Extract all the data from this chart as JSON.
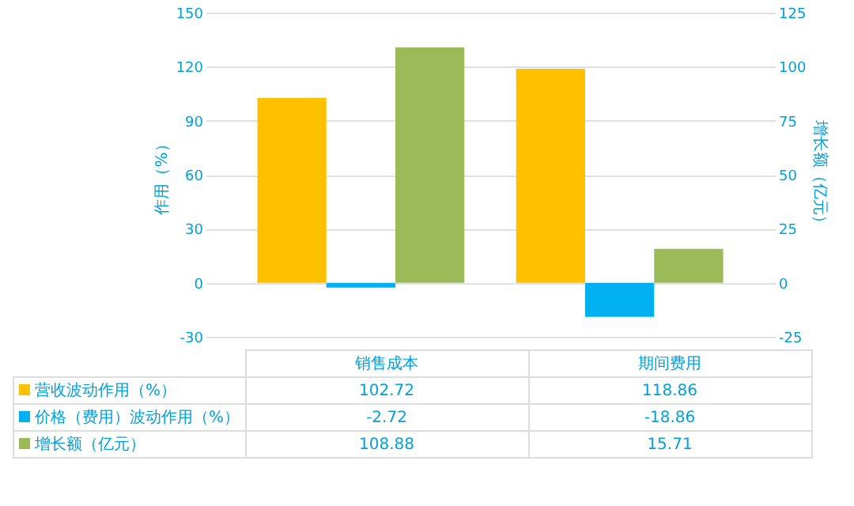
{
  "chart_data": {
    "type": "bar",
    "categories": [
      "销售成本",
      "期间费用"
    ],
    "ylabel": "作用（%）",
    "y2label": "增长额（亿元）",
    "series": [
      {
        "name": "营收波动作用（%）",
        "color": "#ffc000",
        "values": [
          102.72,
          118.86
        ]
      },
      {
        "name": "价格（费用）波动作用（%）",
        "color": "#00b0f0",
        "values": [
          -2.72,
          -18.86
        ]
      },
      {
        "name": "增长额（亿元）",
        "color": "#9bbb59",
        "values": [
          108.88,
          15.71
        ],
        "axis": "y2"
      }
    ],
    "ylim": [
      -30,
      150
    ],
    "yticks": [
      -30,
      0,
      30,
      60,
      90,
      120,
      150
    ],
    "y2lim": [
      -25,
      125
    ],
    "y2ticks": [
      -25,
      0,
      25,
      50,
      75,
      100,
      125
    ],
    "grid": "y",
    "legend": "bottom",
    "data_labels": true
  }
}
